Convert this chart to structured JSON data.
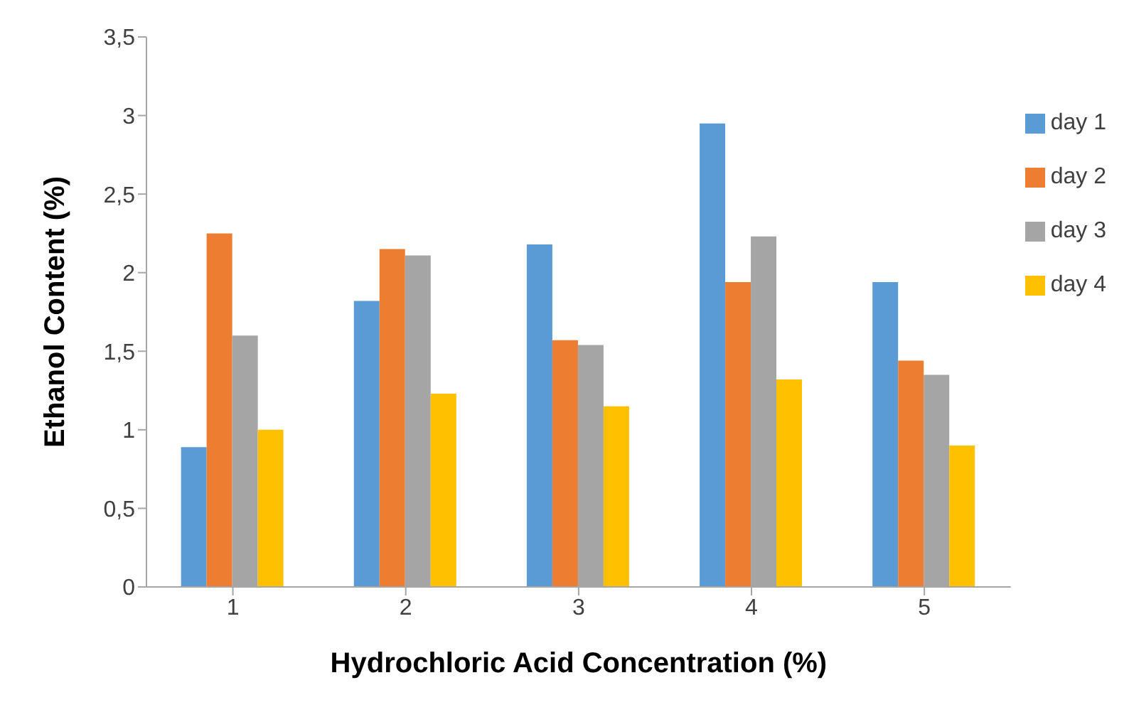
{
  "chart_data": {
    "type": "bar",
    "xlabel": "Hydrochloric Acid Concentration (%)",
    "ylabel": "Ethanol Content (%)",
    "categories": [
      "1",
      "2",
      "3",
      "4",
      "5"
    ],
    "series": [
      {
        "name": "day 1",
        "color": "#5b9bd5",
        "values": [
          0.89,
          1.82,
          2.18,
          2.95,
          1.94
        ]
      },
      {
        "name": "day 2",
        "color": "#ed7d31",
        "values": [
          2.25,
          2.15,
          1.57,
          1.94,
          1.44
        ]
      },
      {
        "name": "day 3",
        "color": "#a5a5a5",
        "values": [
          1.6,
          2.11,
          1.54,
          2.23,
          1.35
        ]
      },
      {
        "name": "day 4",
        "color": "#ffc000",
        "values": [
          1.0,
          1.23,
          1.15,
          1.32,
          0.9
        ]
      }
    ],
    "ylim": [
      0,
      3.5
    ],
    "yticks": [
      0,
      {
        "value": 0.5,
        "label": "0,5"
      },
      1,
      {
        "value": 1.5,
        "label": "1,5"
      },
      2,
      {
        "value": 2.5,
        "label": "2,5"
      },
      3,
      {
        "value": 3.5,
        "label": "3,5"
      }
    ],
    "grid": false,
    "legend": "right"
  }
}
